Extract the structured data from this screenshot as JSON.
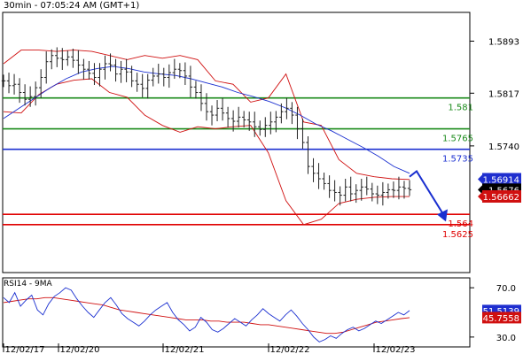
{
  "header": {
    "title": "30min - 07:05:24 AM (GMT+1)"
  },
  "rsi_panel": {
    "title": "RSI14 - 9MA"
  },
  "chart_data": [
    {
      "type": "candlestick",
      "timeframe": "30min",
      "ylim": [
        1.5555,
        1.5935
      ],
      "y_ticks": [
        "1.5893",
        "1.5817",
        "1.5740"
      ],
      "x_ticks": [
        "12/02/17",
        "12/02/20",
        "12/02/21",
        "12/02/22",
        "12/02/23"
      ],
      "last_price": 1.5676,
      "price_labels": [
        {
          "label": "1.56914",
          "value": 1.56914,
          "color": "#1f2fcf"
        },
        {
          "label": "1.5676",
          "value": 1.5676,
          "color": "#000000"
        },
        {
          "label": "1.56662",
          "value": 1.56662,
          "color": "#d01010"
        }
      ],
      "levels": [
        {
          "label": "1.581",
          "value": 1.581,
          "color": "#1a8a1a"
        },
        {
          "label": "1.5765",
          "value": 1.5765,
          "color": "#1a8a1a"
        },
        {
          "label": "1.5735",
          "value": 1.5735,
          "color": "#1a2fd0"
        },
        {
          "label": "1.564",
          "value": 1.564,
          "color": "#e00000"
        },
        {
          "label": "1.5625",
          "value": 1.5625,
          "color": "#e00000"
        }
      ],
      "projection": {
        "from": 1.5695,
        "peak": 1.5703,
        "target": 1.5632,
        "color": "#1a2fd0"
      },
      "close_series": [
        1.5835,
        1.5828,
        1.583,
        1.5818,
        1.5808,
        1.5812,
        1.5825,
        1.584,
        1.5863,
        1.5872,
        1.5868,
        1.5866,
        1.587,
        1.5865,
        1.5858,
        1.5852,
        1.5846,
        1.584,
        1.5852,
        1.586,
        1.5858,
        1.5845,
        1.5852,
        1.5848,
        1.5835,
        1.583,
        1.5824,
        1.5836,
        1.5842,
        1.5845,
        1.584,
        1.5847,
        1.5852,
        1.585,
        1.5842,
        1.5826,
        1.5818,
        1.5802,
        1.579,
        1.5785,
        1.5795,
        1.5788,
        1.578,
        1.5776,
        1.5782,
        1.5778,
        1.5775,
        1.5768,
        1.5764,
        1.577,
        1.5775,
        1.5782,
        1.579,
        1.5795,
        1.5785,
        1.5765,
        1.5745,
        1.571,
        1.57,
        1.5692,
        1.5685,
        1.5675,
        1.5672,
        1.5668,
        1.568,
        1.567,
        1.5675,
        1.568,
        1.5677,
        1.567,
        1.5668,
        1.5672,
        1.5676,
        1.5675,
        1.568,
        1.5678,
        1.5676
      ],
      "moving_average": [
        1.578,
        1.5795,
        1.581,
        1.5825,
        1.5838,
        1.5848,
        1.5853,
        1.5856,
        1.5853,
        1.5848,
        1.5845,
        1.5843,
        1.5838,
        1.5832,
        1.5826,
        1.5818,
        1.5812,
        1.5805,
        1.5796,
        1.5785,
        1.5772,
        1.5762,
        1.575,
        1.5738,
        1.5725,
        1.571,
        1.57
      ],
      "bollinger_upper": [
        1.586,
        1.588,
        1.588,
        1.5878,
        1.588,
        1.5878,
        1.5872,
        1.5866,
        1.5872,
        1.5868,
        1.5872,
        1.5866,
        1.5835,
        1.583,
        1.5804,
        1.581,
        1.5845,
        1.5775,
        1.577,
        1.572,
        1.57,
        1.5695,
        1.5692,
        1.5691
      ],
      "bollinger_lower": [
        1.579,
        1.5788,
        1.5815,
        1.583,
        1.5836,
        1.5838,
        1.5818,
        1.5811,
        1.5785,
        1.577,
        1.576,
        1.5768,
        1.5765,
        1.5768,
        1.577,
        1.573,
        1.566,
        1.5625,
        1.5633,
        1.5656,
        1.5662,
        1.5665,
        1.5666,
        1.5666
      ]
    },
    {
      "type": "line",
      "name": "RSI14",
      "ylim": [
        22,
        78
      ],
      "y_ticks": [
        "70.0",
        "30.0"
      ],
      "rsi_series": [
        62,
        58,
        66,
        55,
        60,
        64,
        52,
        48,
        57,
        63,
        66,
        70,
        68,
        61,
        55,
        50,
        46,
        52,
        58,
        62,
        56,
        49,
        45,
        42,
        39,
        43,
        48,
        52,
        55,
        58,
        50,
        44,
        40,
        35,
        38,
        46,
        42,
        36,
        34,
        37,
        41,
        45,
        42,
        39,
        44,
        48,
        53,
        49,
        46,
        43,
        48,
        52,
        47,
        41,
        36,
        30,
        26,
        28,
        31,
        29,
        33,
        36,
        38,
        35,
        37,
        40,
        43,
        41,
        44,
        47,
        50,
        48,
        51.5
      ],
      "ma_series": [
        58,
        59,
        60,
        61,
        61,
        62,
        62,
        61,
        60,
        59,
        58,
        57,
        56,
        54,
        52,
        51,
        50,
        49,
        48,
        47,
        46,
        45,
        44,
        44,
        44,
        43,
        43,
        42,
        42,
        42,
        41,
        40,
        40,
        39,
        38,
        37,
        36,
        35,
        34,
        33,
        33,
        34,
        36,
        38,
        40,
        42,
        43,
        44,
        45,
        45.8
      ],
      "labels": [
        {
          "label": "51.5139",
          "value": 51.5139,
          "color": "#1f2fcf"
        },
        {
          "label": "45.7558",
          "value": 45.7558,
          "color": "#d01010"
        }
      ]
    }
  ]
}
